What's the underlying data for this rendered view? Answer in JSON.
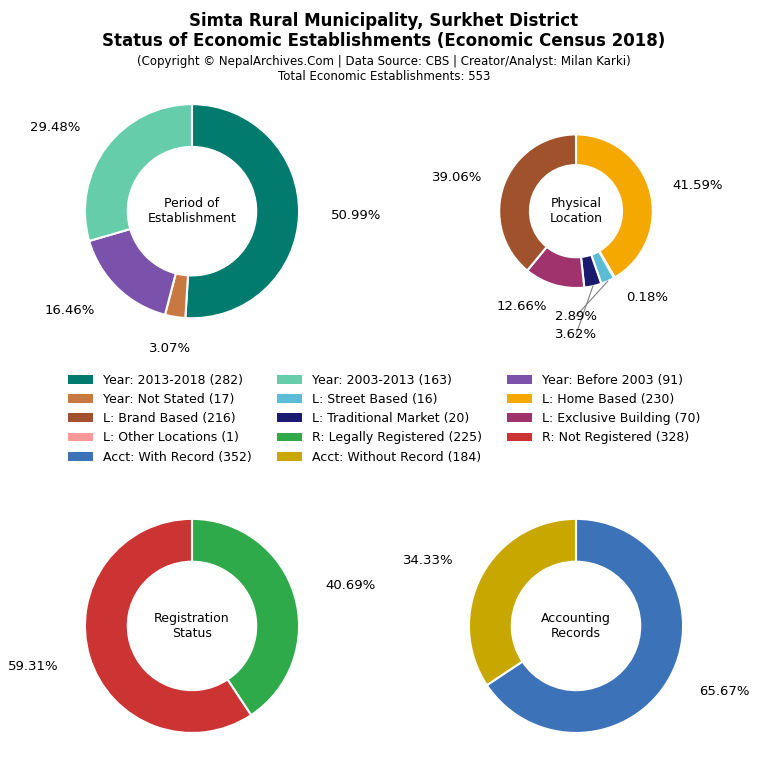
{
  "title": "Simta Rural Municipality, Surkhet District\nStatus of Economic Establishments (Economic Census 2018)",
  "subtitle": "(Copyright © NepalArchives.Com | Data Source: CBS | Creator/Analyst: Milan Karki)\nTotal Economic Establishments: 553",
  "chart_data": [
    {
      "type": "pie",
      "title": "Period of\nEstablishment",
      "values": [
        50.99,
        3.07,
        16.46,
        29.48
      ],
      "value_labels": [
        "50.99%",
        "3.07%",
        "16.46%",
        "29.48%"
      ],
      "colors": [
        "#007B6E",
        "#C87941",
        "#7B52AB",
        "#66CDAA"
      ],
      "data_labels": true
    },
    {
      "type": "pie",
      "title": "Physical\nLocation",
      "values": [
        41.59,
        0.18,
        2.89,
        3.62,
        12.66,
        39.06
      ],
      "value_labels": [
        "41.59%",
        "0.18%",
        "2.89%",
        "3.62%",
        "12.66%",
        "39.06%"
      ],
      "colors": [
        "#F5A800",
        "#2E8B7B",
        "#5BBCD6",
        "#1A1A6E",
        "#A0336E",
        "#A0522D"
      ],
      "data_labels": true
    },
    {
      "type": "pie",
      "title": "Registration\nStatus",
      "values": [
        40.69,
        59.31
      ],
      "value_labels": [
        "40.69%",
        "59.31%"
      ],
      "colors": [
        "#2EAA4A",
        "#CC3333"
      ],
      "data_labels": true
    },
    {
      "type": "pie",
      "title": "Accounting\nRecords",
      "values": [
        65.67,
        34.33
      ],
      "value_labels": [
        "65.67%",
        "34.33%"
      ],
      "colors": [
        "#3B72B8",
        "#C8A800"
      ],
      "data_labels": true
    }
  ],
  "series": [
    {
      "name": "Year: 2013-2018 (282)",
      "color": "#007B6E"
    },
    {
      "name": "Year: Not Stated (17)",
      "color": "#C87941"
    },
    {
      "name": "L: Brand Based (216)",
      "color": "#A0522D"
    },
    {
      "name": "L: Other Locations (1)",
      "color": "#FF9999"
    },
    {
      "name": "Acct: With Record (352)",
      "color": "#3B72B8"
    },
    {
      "name": "Year: 2003-2013 (163)",
      "color": "#66CDAA"
    },
    {
      "name": "L: Street Based (16)",
      "color": "#5BBCD6"
    },
    {
      "name": "L: Traditional Market (20)",
      "color": "#1A1A6E"
    },
    {
      "name": "R: Legally Registered (225)",
      "color": "#2EAA4A"
    },
    {
      "name": "Acct: Without Record (184)",
      "color": "#C8A800"
    },
    {
      "name": "Year: Before 2003 (91)",
      "color": "#7B52AB"
    },
    {
      "name": "L: Home Based (230)",
      "color": "#F5A800"
    },
    {
      "name": "L: Exclusive Building (70)",
      "color": "#A0336E"
    },
    {
      "name": "R: Not Registered (328)",
      "color": "#CC3333"
    }
  ]
}
